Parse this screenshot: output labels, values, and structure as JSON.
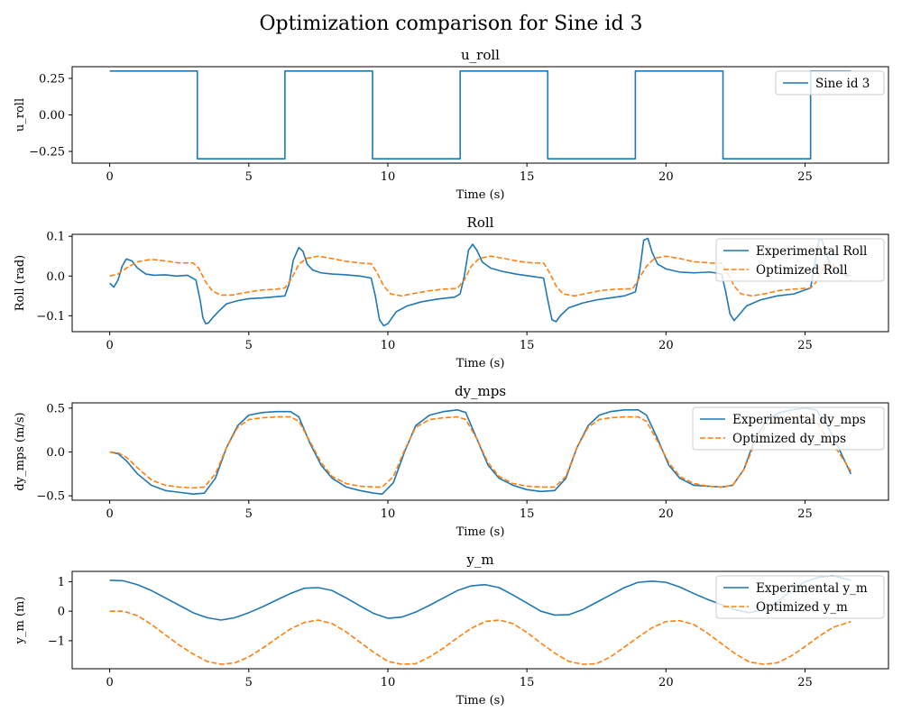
{
  "figure": {
    "suptitle": "Optimization comparison for Sine id 3"
  },
  "colors": {
    "blue": "#1f77b4",
    "orange": "#ff7f0e"
  },
  "chart_data": [
    {
      "type": "line",
      "title": "u_roll",
      "xlabel": "Time (s)",
      "ylabel": "u_roll",
      "xlim": [
        -1.35,
        28.0
      ],
      "ylim": [
        -0.33,
        0.33
      ],
      "xticks": [
        0,
        5,
        10,
        15,
        20,
        25
      ],
      "xtick_labels": [
        "0",
        "5",
        "10",
        "15",
        "20",
        "25"
      ],
      "yticks": [
        -0.25,
        0.0,
        0.25
      ],
      "ytick_labels": [
        "−0.25",
        "0.00",
        "0.25"
      ],
      "grid": false,
      "legend_placement": "upper right",
      "series": [
        {
          "name": "Sine id 3",
          "color": "#1f77b4",
          "style": "solid",
          "x": [
            0,
            3.15,
            3.15,
            6.3,
            6.3,
            9.45,
            9.45,
            12.6,
            12.6,
            15.75,
            15.75,
            18.9,
            18.9,
            22.05,
            22.05,
            25.2,
            25.2,
            26.65
          ],
          "y": [
            0.3,
            0.3,
            -0.3,
            -0.3,
            0.3,
            0.3,
            -0.3,
            -0.3,
            0.3,
            0.3,
            -0.3,
            -0.3,
            0.3,
            0.3,
            -0.3,
            -0.3,
            0.3,
            0.3
          ]
        }
      ]
    },
    {
      "type": "line",
      "title": "Roll",
      "xlabel": "Time (s)",
      "ylabel": "Roll (rad)",
      "xlim": [
        -1.35,
        28.0
      ],
      "ylim": [
        -0.14,
        0.105
      ],
      "xticks": [
        0,
        5,
        10,
        15,
        20,
        25
      ],
      "xtick_labels": [
        "0",
        "5",
        "10",
        "15",
        "20",
        "25"
      ],
      "yticks": [
        -0.1,
        0.0,
        0.1
      ],
      "ytick_labels": [
        "−0.1",
        "0.0",
        "0.1"
      ],
      "grid": false,
      "legend_placement": "upper right",
      "series": [
        {
          "name": "Experimental Roll",
          "color": "#1f77b4",
          "style": "solid",
          "x": [
            0,
            0.15,
            0.3,
            0.45,
            0.6,
            0.8,
            1.0,
            1.3,
            1.6,
            2.0,
            2.4,
            2.8,
            3.1,
            3.25,
            3.35,
            3.45,
            3.55,
            3.7,
            3.9,
            4.2,
            4.6,
            5.0,
            5.5,
            6.0,
            6.3,
            6.45,
            6.6,
            6.8,
            6.95,
            7.1,
            7.3,
            7.6,
            8.0,
            8.5,
            9.0,
            9.4,
            9.55,
            9.7,
            9.85,
            10.0,
            10.3,
            10.7,
            11.2,
            11.8,
            12.4,
            12.6,
            12.75,
            12.9,
            13.05,
            13.2,
            13.4,
            13.7,
            14.1,
            14.6,
            15.1,
            15.6,
            15.75,
            15.9,
            16.05,
            16.2,
            16.5,
            17.0,
            17.5,
            18.0,
            18.5,
            18.9,
            19.05,
            19.2,
            19.35,
            19.5,
            19.7,
            20.0,
            20.5,
            21.0,
            21.6,
            22.0,
            22.15,
            22.3,
            22.45,
            22.6,
            22.9,
            23.4,
            24.0,
            24.6,
            25.2,
            25.35,
            25.5,
            25.6,
            25.75,
            25.9,
            26.1,
            26.4,
            26.65
          ],
          "y": [
            -0.018,
            -0.028,
            -0.01,
            0.025,
            0.043,
            0.038,
            0.02,
            0.005,
            0.002,
            0.003,
            0.0,
            0.002,
            -0.01,
            -0.06,
            -0.105,
            -0.12,
            -0.118,
            -0.105,
            -0.09,
            -0.07,
            -0.062,
            -0.057,
            -0.055,
            -0.052,
            -0.05,
            -0.02,
            0.04,
            0.072,
            0.062,
            0.03,
            0.015,
            0.008,
            0.005,
            0.003,
            0.0,
            -0.005,
            -0.05,
            -0.11,
            -0.125,
            -0.12,
            -0.09,
            -0.075,
            -0.065,
            -0.058,
            -0.053,
            -0.045,
            0.0,
            0.065,
            0.08,
            0.065,
            0.035,
            0.02,
            0.012,
            0.005,
            0.0,
            -0.005,
            -0.06,
            -0.11,
            -0.115,
            -0.1,
            -0.08,
            -0.068,
            -0.06,
            -0.055,
            -0.05,
            -0.04,
            0.01,
            0.09,
            0.095,
            0.06,
            0.03,
            0.018,
            0.01,
            0.008,
            0.01,
            0.005,
            -0.04,
            -0.095,
            -0.112,
            -0.1,
            -0.075,
            -0.06,
            -0.05,
            -0.045,
            -0.03,
            0.03,
            0.09,
            0.092,
            0.06,
            0.03,
            0.01,
            0.005,
            0.0
          ]
        },
        {
          "name": "Optimized Roll",
          "color": "#ff7f0e",
          "style": "dashed",
          "x": [
            0,
            0.3,
            0.6,
            1.0,
            1.5,
            2.0,
            2.5,
            3.0,
            3.2,
            3.45,
            3.7,
            4.0,
            4.4,
            5.0,
            5.5,
            6.0,
            6.3,
            6.55,
            6.8,
            7.1,
            7.5,
            8.0,
            8.5,
            9.0,
            9.4,
            9.6,
            9.85,
            10.1,
            10.5,
            11.0,
            11.5,
            12.0,
            12.5,
            12.75,
            13.0,
            13.3,
            13.7,
            14.2,
            14.7,
            15.2,
            15.6,
            15.8,
            16.05,
            16.3,
            16.7,
            17.2,
            17.7,
            18.2,
            18.8,
            19.0,
            19.3,
            19.6,
            20.0,
            20.5,
            21.0,
            21.6,
            22.0,
            22.2,
            22.45,
            22.7,
            23.1,
            23.6,
            24.1,
            24.6,
            25.2,
            25.4,
            25.65,
            25.9,
            26.2,
            26.65
          ],
          "y": [
            0.0,
            0.005,
            0.02,
            0.036,
            0.042,
            0.038,
            0.033,
            0.033,
            0.02,
            -0.015,
            -0.038,
            -0.048,
            -0.048,
            -0.04,
            -0.035,
            -0.033,
            -0.03,
            -0.005,
            0.03,
            0.045,
            0.05,
            0.044,
            0.037,
            0.033,
            0.031,
            0.01,
            -0.025,
            -0.045,
            -0.05,
            -0.043,
            -0.037,
            -0.033,
            -0.031,
            -0.01,
            0.025,
            0.045,
            0.05,
            0.044,
            0.037,
            0.033,
            0.033,
            0.01,
            -0.025,
            -0.045,
            -0.05,
            -0.043,
            -0.036,
            -0.033,
            -0.032,
            -0.01,
            0.025,
            0.045,
            0.05,
            0.044,
            0.036,
            0.033,
            0.032,
            0.01,
            -0.025,
            -0.045,
            -0.05,
            -0.044,
            -0.036,
            -0.033,
            -0.03,
            -0.015,
            0.02,
            0.035,
            0.015,
            -0.01
          ]
        }
      ]
    },
    {
      "type": "line",
      "title": "dy_mps",
      "xlabel": "Time (s)",
      "ylabel": "dy_mps (m/s)",
      "xlim": [
        -1.35,
        28.0
      ],
      "ylim": [
        -0.55,
        0.56
      ],
      "xticks": [
        0,
        5,
        10,
        15,
        20,
        25
      ],
      "xtick_labels": [
        "0",
        "5",
        "10",
        "15",
        "20",
        "25"
      ],
      "yticks": [
        -0.5,
        0.0,
        0.5
      ],
      "ytick_labels": [
        "−0.5",
        "0.0",
        "0.5"
      ],
      "grid": false,
      "legend_placement": "upper right",
      "series": [
        {
          "name": "Experimental dy_mps",
          "color": "#1f77b4",
          "style": "solid",
          "x": [
            0,
            0.3,
            0.6,
            1.0,
            1.5,
            2.0,
            2.5,
            3.0,
            3.4,
            3.8,
            4.2,
            4.6,
            5.0,
            5.5,
            6.0,
            6.5,
            6.8,
            7.2,
            7.6,
            8.0,
            8.5,
            9.0,
            9.5,
            9.8,
            10.2,
            10.6,
            11.0,
            11.5,
            12.0,
            12.5,
            12.8,
            13.2,
            13.6,
            14.0,
            14.5,
            15.0,
            15.5,
            16.0,
            16.4,
            16.8,
            17.2,
            17.6,
            18.0,
            18.5,
            19.0,
            19.3,
            19.7,
            20.1,
            20.5,
            21.0,
            21.5,
            22.0,
            22.4,
            22.8,
            23.2,
            23.6,
            24.0,
            24.5,
            25.0,
            25.4,
            25.8,
            26.2,
            26.65
          ],
          "y": [
            0.0,
            -0.02,
            -0.1,
            -0.25,
            -0.38,
            -0.44,
            -0.46,
            -0.48,
            -0.47,
            -0.3,
            0.05,
            0.3,
            0.42,
            0.45,
            0.46,
            0.46,
            0.4,
            0.1,
            -0.15,
            -0.3,
            -0.4,
            -0.44,
            -0.47,
            -0.48,
            -0.35,
            0.0,
            0.3,
            0.42,
            0.46,
            0.48,
            0.45,
            0.15,
            -0.15,
            -0.3,
            -0.38,
            -0.43,
            -0.45,
            -0.44,
            -0.3,
            0.05,
            0.3,
            0.42,
            0.46,
            0.48,
            0.48,
            0.42,
            0.15,
            -0.15,
            -0.3,
            -0.38,
            -0.39,
            -0.4,
            -0.38,
            -0.2,
            0.15,
            0.35,
            0.44,
            0.48,
            0.5,
            0.48,
            0.3,
            0.05,
            -0.25
          ]
        },
        {
          "name": "Optimized dy_mps",
          "color": "#ff7f0e",
          "style": "dashed",
          "x": [
            0,
            0.3,
            0.6,
            1.0,
            1.5,
            2.0,
            2.5,
            3.0,
            3.4,
            3.8,
            4.2,
            4.6,
            5.0,
            5.5,
            6.0,
            6.5,
            6.8,
            7.2,
            7.6,
            8.0,
            8.5,
            9.0,
            9.5,
            9.8,
            10.2,
            10.6,
            11.0,
            11.5,
            12.0,
            12.5,
            12.8,
            13.2,
            13.6,
            14.0,
            14.5,
            15.0,
            15.5,
            16.0,
            16.4,
            16.8,
            17.2,
            17.6,
            18.0,
            18.5,
            19.0,
            19.3,
            19.7,
            20.1,
            20.5,
            21.0,
            21.5,
            22.0,
            22.4,
            22.8,
            23.2,
            23.6,
            24.0,
            24.5,
            25.0,
            25.4,
            25.8,
            26.2,
            26.65
          ],
          "y": [
            0.0,
            -0.01,
            -0.06,
            -0.18,
            -0.32,
            -0.38,
            -0.4,
            -0.41,
            -0.4,
            -0.25,
            0.05,
            0.28,
            0.37,
            0.39,
            0.4,
            0.4,
            0.35,
            0.12,
            -0.12,
            -0.28,
            -0.36,
            -0.39,
            -0.4,
            -0.4,
            -0.28,
            0.02,
            0.28,
            0.37,
            0.39,
            0.4,
            0.37,
            0.15,
            -0.12,
            -0.28,
            -0.36,
            -0.39,
            -0.4,
            -0.4,
            -0.28,
            0.05,
            0.28,
            0.37,
            0.39,
            0.4,
            0.4,
            0.35,
            0.12,
            -0.12,
            -0.28,
            -0.36,
            -0.39,
            -0.4,
            -0.38,
            -0.2,
            0.1,
            0.3,
            0.38,
            0.4,
            0.4,
            0.35,
            0.15,
            0.0,
            -0.22
          ]
        }
      ]
    },
    {
      "type": "line",
      "title": "y_m",
      "xlabel": "Time (s)",
      "ylabel": "y_m (m)",
      "xlim": [
        -1.35,
        28.0
      ],
      "ylim": [
        -1.95,
        1.35
      ],
      "xticks": [
        0,
        5,
        10,
        15,
        20,
        25
      ],
      "xtick_labels": [
        "0",
        "5",
        "10",
        "15",
        "20",
        "25"
      ],
      "yticks": [
        -1,
        0,
        1
      ],
      "ytick_labels": [
        "−1",
        "0",
        "1"
      ],
      "grid": false,
      "legend_placement": "upper right",
      "series": [
        {
          "name": "Experimental y_m",
          "color": "#1f77b4",
          "style": "solid",
          "x": [
            0,
            0.5,
            1.0,
            1.5,
            2.0,
            2.5,
            3.0,
            3.5,
            4.0,
            4.5,
            5.0,
            5.5,
            6.0,
            6.5,
            7.0,
            7.5,
            8.0,
            8.5,
            9.0,
            9.5,
            10.0,
            10.5,
            11.0,
            11.5,
            12.0,
            12.5,
            13.0,
            13.5,
            14.0,
            14.5,
            15.0,
            15.5,
            16.0,
            16.5,
            17.0,
            17.5,
            18.0,
            18.5,
            19.0,
            19.5,
            20.0,
            20.5,
            21.0,
            21.5,
            22.0,
            22.5,
            23.0,
            23.5,
            24.0,
            24.5,
            25.0,
            25.5,
            26.0,
            26.65
          ],
          "y": [
            1.05,
            1.03,
            0.9,
            0.7,
            0.45,
            0.2,
            -0.05,
            -0.22,
            -0.3,
            -0.22,
            -0.05,
            0.15,
            0.38,
            0.6,
            0.78,
            0.8,
            0.7,
            0.45,
            0.18,
            -0.08,
            -0.24,
            -0.2,
            -0.03,
            0.2,
            0.45,
            0.7,
            0.86,
            0.9,
            0.8,
            0.55,
            0.28,
            0.0,
            -0.13,
            -0.12,
            0.05,
            0.3,
            0.55,
            0.8,
            0.98,
            1.02,
            0.98,
            0.82,
            0.6,
            0.4,
            0.22,
            0.05,
            -0.05,
            0.05,
            0.3,
            0.7,
            1.0,
            1.15,
            1.2,
            1.05
          ]
        },
        {
          "name": "Optimized y_m",
          "color": "#ff7f0e",
          "style": "dashed",
          "x": [
            0,
            0.5,
            1.0,
            1.5,
            2.0,
            2.5,
            3.0,
            3.5,
            4.0,
            4.5,
            5.0,
            5.5,
            6.0,
            6.5,
            7.0,
            7.5,
            8.0,
            8.5,
            9.0,
            9.5,
            10.0,
            10.5,
            11.0,
            11.5,
            12.0,
            12.5,
            13.0,
            13.5,
            14.0,
            14.5,
            15.0,
            15.5,
            16.0,
            16.5,
            17.0,
            17.5,
            18.0,
            18.5,
            19.0,
            19.5,
            20.0,
            20.5,
            21.0,
            21.5,
            22.0,
            22.5,
            23.0,
            23.5,
            24.0,
            24.5,
            25.0,
            25.5,
            26.0,
            26.65
          ],
          "y": [
            0.0,
            0.0,
            -0.15,
            -0.45,
            -0.8,
            -1.15,
            -1.45,
            -1.7,
            -1.8,
            -1.75,
            -1.55,
            -1.25,
            -0.92,
            -0.6,
            -0.38,
            -0.3,
            -0.42,
            -0.7,
            -1.05,
            -1.4,
            -1.7,
            -1.8,
            -1.78,
            -1.55,
            -1.25,
            -0.9,
            -0.58,
            -0.35,
            -0.3,
            -0.42,
            -0.72,
            -1.08,
            -1.42,
            -1.7,
            -1.8,
            -1.78,
            -1.55,
            -1.22,
            -0.88,
            -0.56,
            -0.35,
            -0.32,
            -0.45,
            -0.75,
            -1.1,
            -1.45,
            -1.72,
            -1.8,
            -1.75,
            -1.52,
            -1.2,
            -0.85,
            -0.55,
            -0.35
          ]
        }
      ]
    }
  ]
}
